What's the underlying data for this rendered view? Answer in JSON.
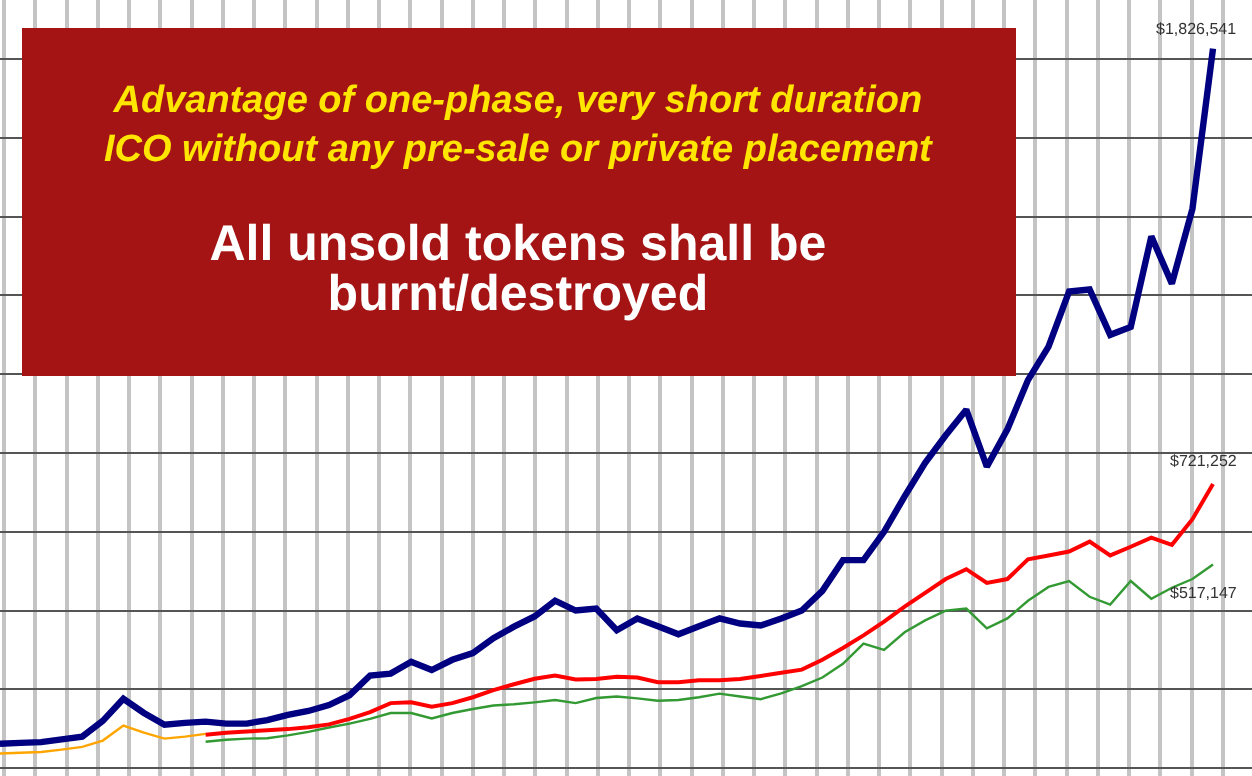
{
  "chart_data": {
    "type": "line",
    "annotations": [
      "Advantage of one-phase, very short duration\nICO without any pre-sale or private placement",
      "All unsold tokens shall be\nburnt/destroyed"
    ],
    "categories": [
      null,
      null,
      null,
      null,
      null,
      null,
      null,
      null,
      null,
      null,
      null,
      null,
      null,
      null,
      null,
      null,
      null,
      null,
      null,
      null,
      null,
      null,
      null,
      null,
      null,
      null,
      null,
      null,
      null,
      null,
      null,
      null,
      null,
      null,
      null,
      null,
      null,
      null,
      null,
      null,
      null,
      null,
      null,
      null,
      null,
      null,
      null,
      null,
      null,
      null,
      null,
      null,
      null,
      null,
      null,
      null,
      null,
      null,
      null,
      null
    ],
    "ylim": [
      -20000,
      1950000
    ],
    "yticks": [
      {
        "value": 0,
        "label": null
      },
      {
        "value": 200000,
        "label": null
      },
      {
        "value": 400000,
        "label": null
      },
      {
        "value": 600000,
        "label": null
      },
      {
        "value": 800000,
        "label": null
      },
      {
        "value": 1000000,
        "label": null
      },
      {
        "value": 1200000,
        "label": null
      },
      {
        "value": 1400000,
        "label": null
      },
      {
        "value": 1600000,
        "label": null
      },
      {
        "value": 1800000,
        "label": null
      }
    ],
    "grid": true,
    "marker": "none",
    "line_style": "solid",
    "series": [
      {
        "color": "#ffa500",
        "values": [
          37000,
          39000,
          41000,
          47000,
          54000,
          70000,
          108000,
          90000,
          75000,
          80000,
          87000,
          null,
          null,
          null,
          null,
          null,
          null,
          null,
          null,
          null,
          null,
          null,
          null,
          null,
          null,
          null,
          null,
          null,
          null,
          null,
          null,
          null,
          null,
          null,
          null,
          null,
          null,
          null,
          null,
          null,
          null,
          null,
          null,
          null,
          null,
          null,
          null,
          null,
          null,
          null,
          null,
          null,
          null,
          null,
          null,
          null,
          null,
          null,
          null,
          null
        ]
      },
      {
        "color": "#339933",
        "values": [
          null,
          null,
          null,
          null,
          null,
          null,
          null,
          null,
          null,
          null,
          67000,
          72000,
          75000,
          76000,
          83000,
          92000,
          103000,
          113000,
          125000,
          140000,
          140000,
          126000,
          140000,
          150000,
          159000,
          162000,
          167000,
          173000,
          165000,
          178000,
          182000,
          177000,
          171000,
          173000,
          180000,
          189000,
          182000,
          175000,
          190000,
          208000,
          230000,
          265000,
          316000,
          300000,
          345000,
          375000,
          400000,
          405000,
          355000,
          380000,
          425000,
          460000,
          475000,
          435000,
          415000,
          475000,
          430000,
          458000,
          480000,
          517147
        ],
        "value_labels": [
          null,
          null,
          null,
          null,
          null,
          null,
          null,
          null,
          null,
          null,
          null,
          null,
          null,
          null,
          null,
          null,
          null,
          null,
          null,
          null,
          null,
          null,
          null,
          null,
          null,
          null,
          null,
          null,
          null,
          null,
          null,
          null,
          null,
          null,
          null,
          null,
          null,
          null,
          null,
          null,
          null,
          null,
          null,
          null,
          null,
          null,
          null,
          null,
          null,
          null,
          null,
          null,
          null,
          null,
          null,
          null,
          null,
          null,
          null,
          "$517,147"
        ]
      },
      {
        "color": "#ff0000",
        "values": [
          null,
          null,
          null,
          null,
          null,
          null,
          null,
          null,
          null,
          null,
          85000,
          90000,
          93000,
          96000,
          99000,
          104000,
          111000,
          125000,
          142000,
          165000,
          167000,
          156000,
          165000,
          180000,
          198000,
          213000,
          227000,
          235000,
          225000,
          226000,
          232000,
          230000,
          218000,
          218000,
          223000,
          223000,
          226000,
          234000,
          242000,
          250000,
          275000,
          305000,
          337000,
          372000,
          410000,
          445000,
          480000,
          505000,
          470000,
          480000,
          530000,
          540000,
          550000,
          575000,
          540000,
          562000,
          585000,
          567000,
          632000,
          721252
        ],
        "value_labels": [
          null,
          null,
          null,
          null,
          null,
          null,
          null,
          null,
          null,
          null,
          null,
          null,
          null,
          null,
          null,
          null,
          null,
          null,
          null,
          null,
          null,
          null,
          null,
          null,
          null,
          null,
          null,
          null,
          null,
          null,
          null,
          null,
          null,
          null,
          null,
          null,
          null,
          null,
          null,
          null,
          null,
          null,
          null,
          null,
          null,
          null,
          null,
          null,
          null,
          null,
          null,
          null,
          null,
          null,
          null,
          null,
          null,
          null,
          null,
          "$721,252"
        ]
      },
      {
        "color": "#000080",
        "values": [
          62000,
          64000,
          66000,
          73000,
          80000,
          120000,
          176000,
          140000,
          110000,
          115000,
          118000,
          113000,
          113000,
          122000,
          135000,
          145000,
          160000,
          185000,
          235000,
          240000,
          270000,
          249000,
          275000,
          292000,
          330000,
          359000,
          385000,
          425000,
          400000,
          405000,
          350000,
          380000,
          360000,
          340000,
          360000,
          380000,
          367000,
          362000,
          380000,
          400000,
          450000,
          528000,
          528000,
          600000,
          690000,
          775000,
          845000,
          910000,
          765000,
          860000,
          985000,
          1070000,
          1210000,
          1215000,
          1100000,
          1120000,
          1350000,
          1230000,
          1420000,
          1826541
        ],
        "value_labels": [
          null,
          null,
          null,
          null,
          null,
          null,
          null,
          null,
          null,
          null,
          null,
          null,
          null,
          null,
          null,
          null,
          null,
          null,
          null,
          null,
          null,
          null,
          null,
          null,
          null,
          null,
          null,
          null,
          null,
          null,
          null,
          null,
          null,
          null,
          null,
          null,
          null,
          null,
          null,
          null,
          null,
          null,
          null,
          null,
          null,
          null,
          null,
          null,
          null,
          null,
          null,
          null,
          null,
          null,
          null,
          null,
          null,
          null,
          null,
          "$1,826,541"
        ]
      }
    ]
  }
}
